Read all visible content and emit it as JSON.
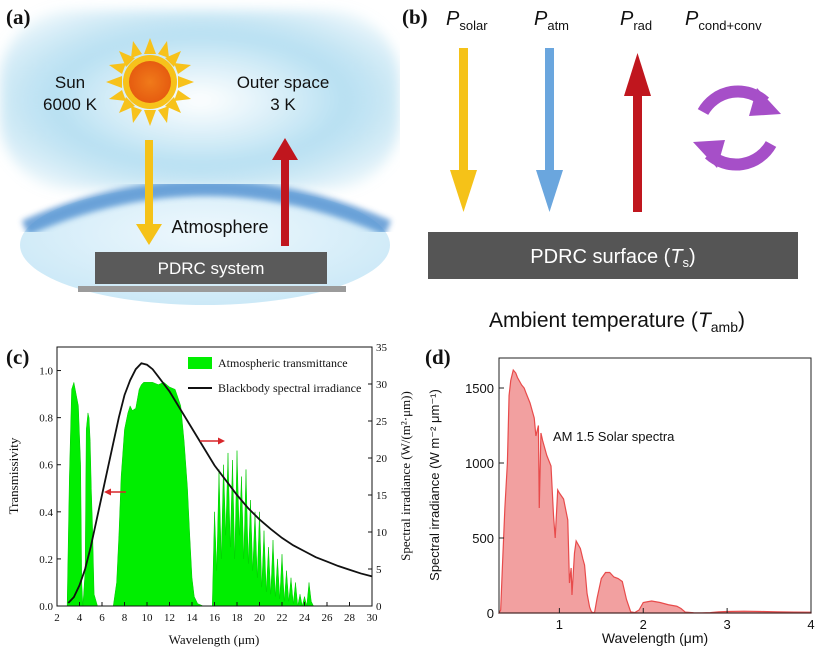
{
  "panel_a": {
    "label": "(a)",
    "sun_label": "Sun",
    "sun_temp": "6000 K",
    "space_label": "Outer space",
    "space_temp": "3 K",
    "atmosphere_label": "Atmosphere",
    "system_label": "PDRC system"
  },
  "panel_b": {
    "label": "(b)",
    "flux_solar_main": "P",
    "flux_solar_sub": "solar",
    "flux_atm_main": "P",
    "flux_atm_sub": "atm",
    "flux_rad_main": "P",
    "flux_rad_sub": "rad",
    "flux_cc_main": "P",
    "flux_cc_sub": "cond+conv",
    "surface_prefix": "PDRC surface (",
    "surface_var": "T",
    "surface_sub": "s",
    "surface_suffix": ")",
    "ambient_prefix": "Ambient temperature (",
    "ambient_var": "T",
    "ambient_sub": "amb",
    "ambient_suffix": ")"
  },
  "panel_c": {
    "label": "(c)",
    "legend_transmittance": "Atmospheric transmittance",
    "legend_blackbody": "Blackbody spectral irradiance",
    "xlabel": "Wavelength (μm)",
    "ylabel_left": "Transmissivity",
    "ylabel_right": "Spectral irradiance (W/(m²·μm))"
  },
  "panel_d": {
    "label": "(d)",
    "annotation": "AM 1.5 Solar spectra",
    "xlabel": "Wavelength (μm)",
    "ylabel": "Spectral irradiance (W m⁻² μm⁻¹)"
  },
  "colors": {
    "solar": "#f5c218",
    "atm": "#6aa6de",
    "rad": "#c0161e",
    "conv": "#a64fc8",
    "surface": "#555555",
    "transmittance": "#00ee00",
    "blackbody": "#111111",
    "solar_spectrum": "#e84b4b",
    "sky": "#9fd4ec"
  },
  "chart_data": [
    {
      "type": "area",
      "title": "",
      "xlabel": "Wavelength (μm)",
      "ylabel": "Transmissivity",
      "y2label": "Spectral irradiance (W/(m²·μm))",
      "xlim": [
        2,
        30
      ],
      "ylim": [
        0,
        1.1
      ],
      "y2lim": [
        0,
        35
      ],
      "xticks": [
        2,
        4,
        6,
        8,
        10,
        12,
        14,
        16,
        18,
        20,
        22,
        24,
        26,
        28,
        30
      ],
      "yticks": [
        0.0,
        0.2,
        0.4,
        0.6,
        0.8,
        1.0
      ],
      "y2ticks": [
        0,
        5,
        10,
        15,
        20,
        25,
        30,
        35
      ],
      "series": [
        {
          "name": "Atmospheric transmittance",
          "axis": "left",
          "x": [
            2.9,
            3.1,
            3.3,
            3.5,
            3.7,
            3.9,
            4.1,
            4.2,
            4.3,
            4.5,
            4.6,
            4.75,
            4.85,
            4.95,
            5.05,
            5.15,
            5.3,
            5.6,
            6.0,
            7.0,
            7.3,
            7.5,
            7.7,
            8.0,
            8.3,
            8.5,
            8.7,
            9.0,
            9.3,
            9.5,
            9.7,
            10.0,
            10.5,
            11.0,
            11.5,
            12.0,
            12.5,
            13.0,
            13.3,
            13.6,
            13.8,
            14.0,
            14.2,
            14.5,
            15.0,
            15.5,
            15.8,
            16.0,
            16.2,
            16.4,
            16.6,
            16.8,
            17.0,
            17.2,
            17.4,
            17.6,
            17.8,
            18.0,
            18.2,
            18.4,
            18.6,
            18.8,
            19.0,
            19.2,
            19.4,
            19.6,
            19.8,
            20.0,
            20.2,
            20.4,
            20.6,
            20.8,
            21.0,
            21.2,
            21.4,
            21.6,
            21.8,
            22.0,
            22.2,
            22.4,
            22.6,
            22.8,
            23.0,
            23.2,
            23.4,
            23.6,
            23.8,
            24.0,
            24.2,
            24.4,
            24.6,
            24.8,
            25.0,
            25.3
          ],
          "y": [
            0,
            0.55,
            0.92,
            0.95,
            0.9,
            0.85,
            0.6,
            0.1,
            0,
            0.15,
            0.75,
            0.82,
            0.8,
            0.7,
            0.5,
            0.35,
            0.05,
            0,
            0,
            0,
            0.1,
            0.3,
            0.55,
            0.75,
            0.82,
            0.85,
            0.83,
            0.84,
            0.92,
            0.94,
            0.95,
            0.95,
            0.95,
            0.94,
            0.95,
            0.93,
            0.92,
            0.85,
            0.7,
            0.5,
            0.3,
            0.12,
            0.04,
            0.01,
            0,
            0,
            0,
            0.4,
            0.15,
            0.58,
            0.2,
            0.6,
            0.3,
            0.65,
            0.25,
            0.62,
            0.2,
            0.66,
            0.3,
            0.55,
            0.2,
            0.58,
            0.18,
            0.45,
            0.15,
            0.4,
            0.12,
            0.4,
            0.08,
            0.32,
            0.06,
            0.25,
            0.05,
            0.28,
            0.04,
            0.2,
            0.03,
            0.22,
            0.02,
            0.15,
            0.02,
            0.12,
            0.01,
            0.1,
            0,
            0.05,
            0,
            0.04,
            0,
            0.1,
            0.02,
            0,
            0,
            0
          ]
        },
        {
          "name": "Blackbody spectral irradiance",
          "axis": "right",
          "x": [
            3.0,
            3.5,
            4.0,
            4.5,
            5.0,
            5.5,
            6.0,
            6.5,
            7.0,
            7.5,
            8.0,
            8.5,
            9.0,
            9.5,
            10.0,
            10.5,
            11.0,
            12.0,
            13.0,
            14.0,
            15.0,
            16.0,
            17.0,
            18.0,
            19.0,
            20.0,
            21.0,
            22.0,
            23.0,
            24.0,
            25.0,
            26.0,
            27.0,
            28.0,
            29.0,
            30.0
          ],
          "y": [
            0.4,
            1.2,
            2.8,
            5.0,
            8.0,
            11.5,
            15.0,
            18.5,
            22.0,
            25.5,
            28.5,
            30.5,
            32.0,
            32.8,
            32.6,
            32.0,
            31.0,
            29.0,
            26.5,
            24.0,
            21.5,
            19.0,
            17.0,
            15.0,
            13.2,
            11.7,
            10.4,
            9.2,
            8.2,
            7.4,
            6.6,
            6.0,
            5.4,
            4.9,
            4.4,
            4.0
          ]
        }
      ]
    },
    {
      "type": "area",
      "title": "",
      "xlabel": "Wavelength (μm)",
      "ylabel": "Spectral irradiance (W m⁻² μm⁻¹)",
      "xlim": [
        0.28,
        4.0
      ],
      "ylim": [
        0,
        1700
      ],
      "xticks": [
        1,
        2,
        3,
        4
      ],
      "yticks": [
        0,
        500,
        1000,
        1500
      ],
      "series": [
        {
          "name": "AM 1.5 Solar spectra",
          "x": [
            0.28,
            0.3,
            0.32,
            0.35,
            0.38,
            0.4,
            0.42,
            0.45,
            0.48,
            0.5,
            0.53,
            0.55,
            0.58,
            0.6,
            0.65,
            0.7,
            0.72,
            0.75,
            0.76,
            0.78,
            0.8,
            0.85,
            0.9,
            0.93,
            0.95,
            0.98,
            1.0,
            1.05,
            1.1,
            1.12,
            1.14,
            1.15,
            1.18,
            1.2,
            1.25,
            1.28,
            1.3,
            1.33,
            1.36,
            1.38,
            1.4,
            1.42,
            1.45,
            1.5,
            1.55,
            1.6,
            1.65,
            1.7,
            1.75,
            1.8,
            1.85,
            1.9,
            1.95,
            2.0,
            2.05,
            2.1,
            2.2,
            2.3,
            2.4,
            2.45,
            2.5,
            2.6,
            2.7,
            2.8,
            2.9,
            3.0,
            3.2,
            3.4,
            3.6,
            3.8,
            4.0
          ],
          "y": [
            0,
            20,
            300,
            700,
            1000,
            1450,
            1550,
            1620,
            1600,
            1570,
            1540,
            1520,
            1500,
            1470,
            1400,
            1300,
            1180,
            1250,
            700,
            1200,
            1150,
            1050,
            980,
            650,
            500,
            820,
            800,
            760,
            620,
            200,
            300,
            120,
            400,
            480,
            430,
            360,
            320,
            130,
            40,
            10,
            2,
            5,
            100,
            230,
            270,
            270,
            240,
            230,
            210,
            90,
            8,
            3,
            20,
            70,
            75,
            80,
            70,
            55,
            45,
            30,
            6,
            2,
            1,
            3,
            8,
            10,
            12,
            10,
            8,
            6,
            5
          ]
        }
      ]
    }
  ]
}
